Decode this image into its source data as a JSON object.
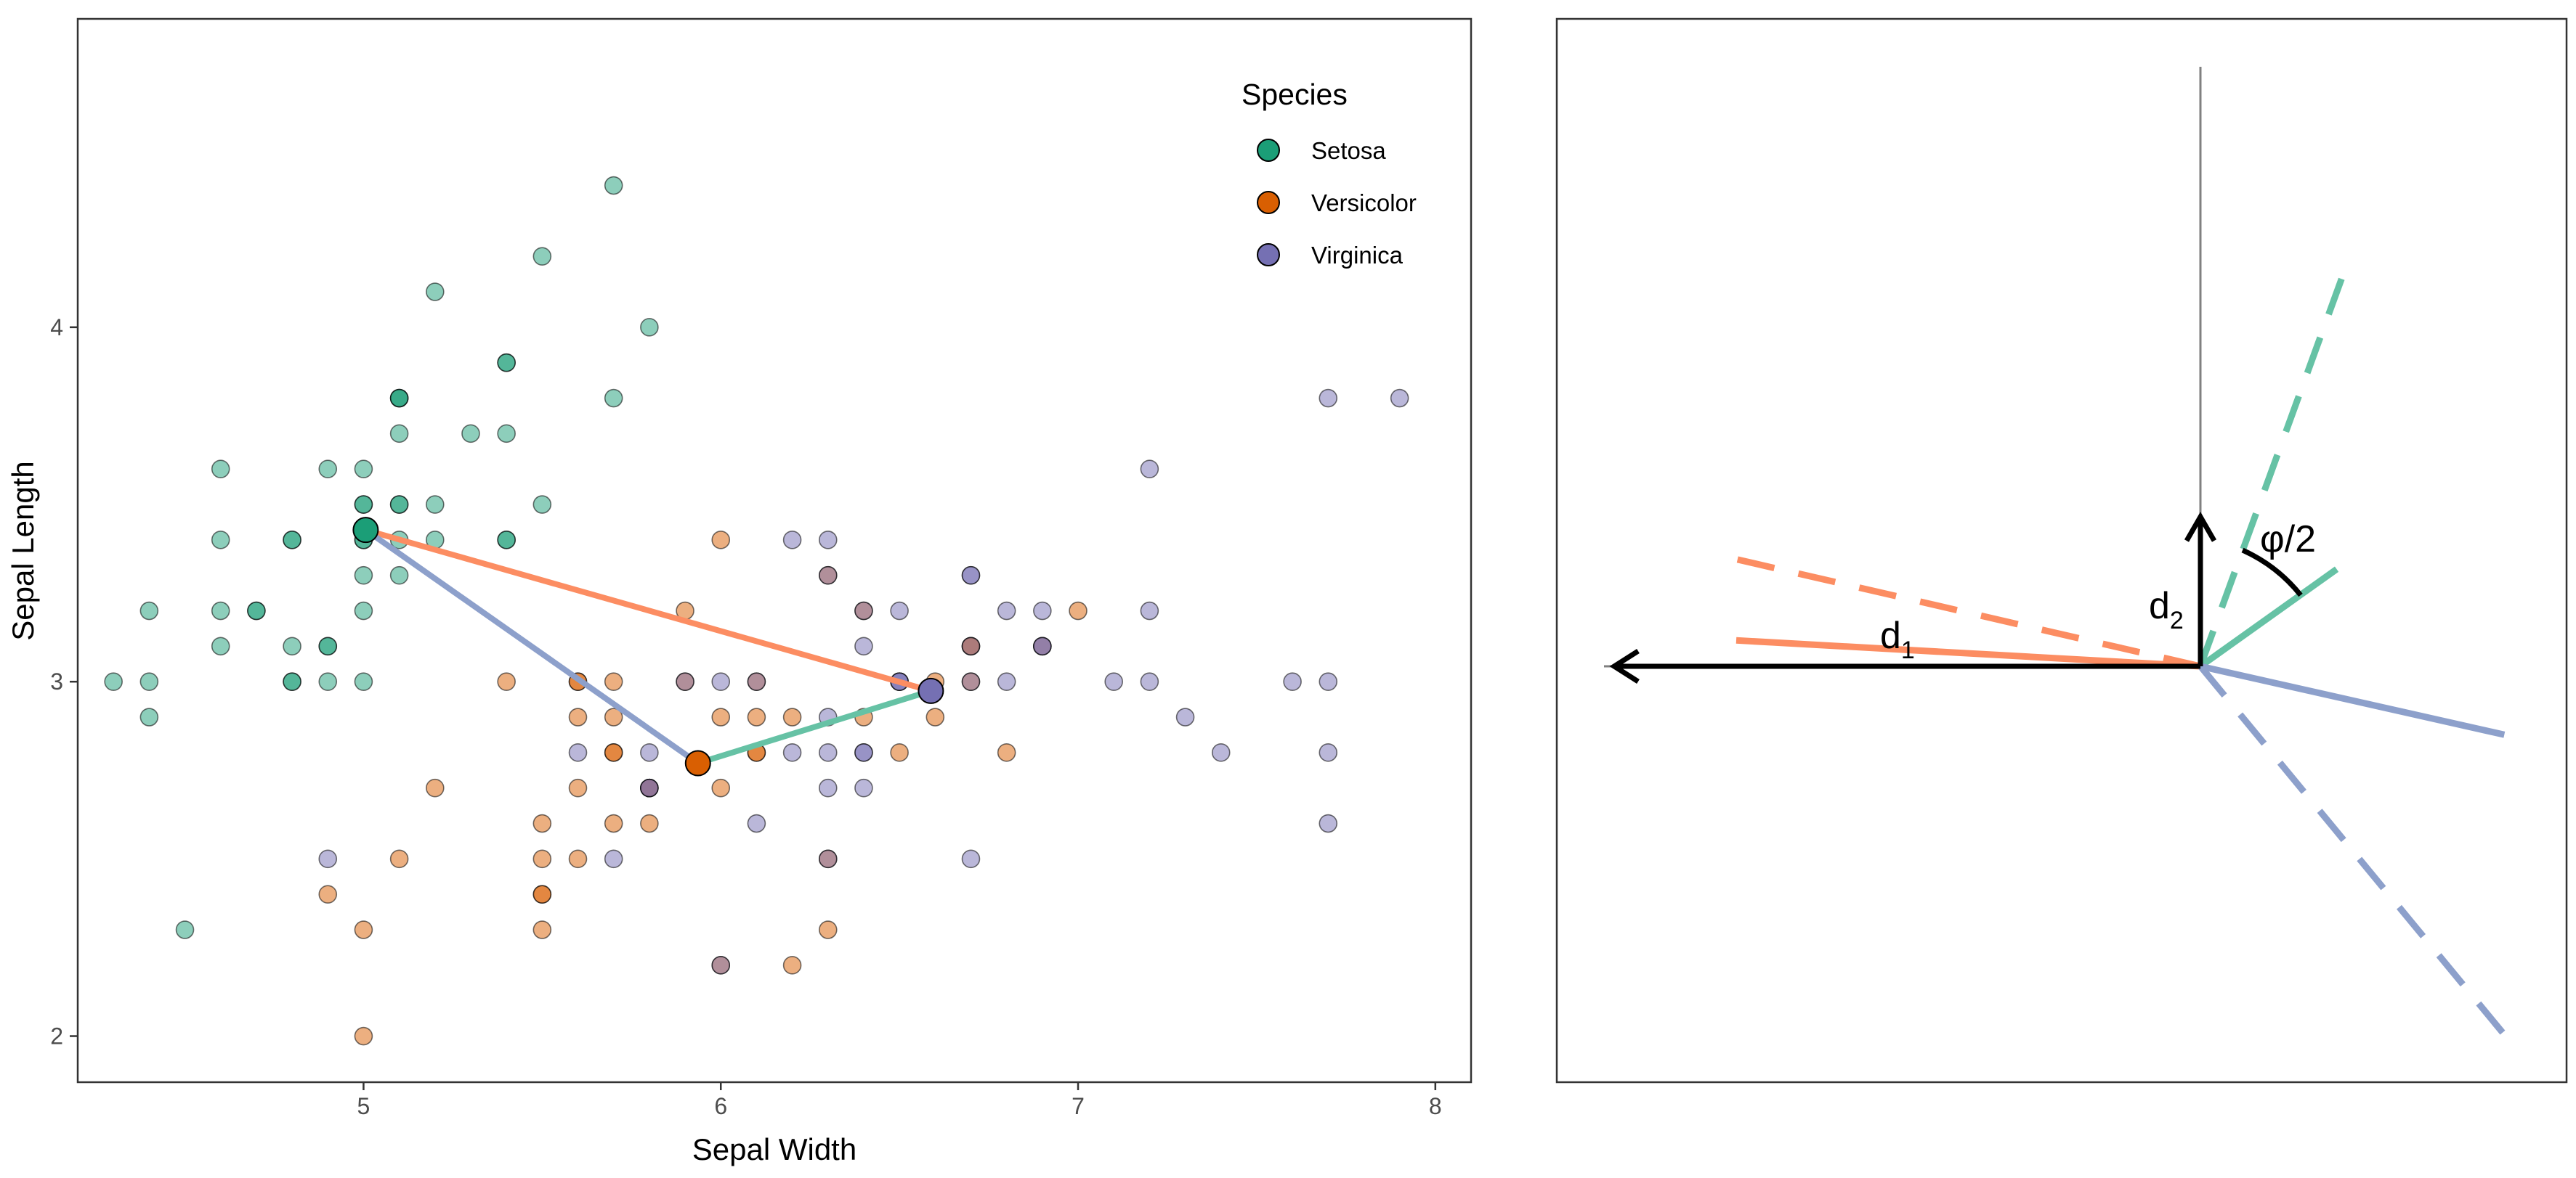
{
  "colors": {
    "setosa": "#1b9e77",
    "versicolor": "#d95f02",
    "virginica": "#7570b3",
    "line_orange": "#fc8d62",
    "line_green": "#66c2a5",
    "line_blue": "#8da0cb"
  },
  "chart_data": [
    {
      "type": "scatter",
      "title": "",
      "xlabel": "Sepal Width",
      "ylabel": "Sepal Length",
      "xlim": [
        4.2,
        8.1
      ],
      "ylim": [
        1.87,
        4.87
      ],
      "x_ticks": [
        "5",
        "6",
        "7",
        "8"
      ],
      "y_ticks": [
        "2",
        "3",
        "4"
      ],
      "grid": false,
      "legend": {
        "title": "Species",
        "position": "top-right",
        "entries": [
          "Setosa",
          "Versicolor",
          "Virginica"
        ]
      },
      "series": [
        {
          "name": "Setosa",
          "points": [
            [
              5.1,
              3.5
            ],
            [
              4.9,
              3.0
            ],
            [
              4.7,
              3.2
            ],
            [
              4.6,
              3.1
            ],
            [
              5.0,
              3.6
            ],
            [
              5.4,
              3.9
            ],
            [
              4.6,
              3.4
            ],
            [
              5.0,
              3.4
            ],
            [
              4.4,
              2.9
            ],
            [
              4.9,
              3.1
            ],
            [
              5.4,
              3.7
            ],
            [
              4.8,
              3.4
            ],
            [
              4.8,
              3.0
            ],
            [
              4.3,
              3.0
            ],
            [
              5.8,
              4.0
            ],
            [
              5.7,
              4.4
            ],
            [
              5.4,
              3.9
            ],
            [
              5.1,
              3.5
            ],
            [
              5.7,
              3.8
            ],
            [
              5.1,
              3.8
            ],
            [
              5.4,
              3.4
            ],
            [
              5.1,
              3.7
            ],
            [
              4.6,
              3.6
            ],
            [
              5.1,
              3.3
            ],
            [
              4.8,
              3.4
            ],
            [
              5.0,
              3.0
            ],
            [
              5.0,
              3.4
            ],
            [
              5.2,
              3.5
            ],
            [
              5.2,
              3.4
            ],
            [
              4.7,
              3.2
            ],
            [
              4.8,
              3.1
            ],
            [
              5.4,
              3.4
            ],
            [
              5.2,
              4.1
            ],
            [
              5.5,
              4.2
            ],
            [
              4.9,
              3.1
            ],
            [
              5.0,
              3.2
            ],
            [
              5.5,
              3.5
            ],
            [
              4.9,
              3.6
            ],
            [
              4.4,
              3.0
            ],
            [
              5.1,
              3.4
            ],
            [
              5.0,
              3.5
            ],
            [
              4.5,
              2.3
            ],
            [
              4.4,
              3.2
            ],
            [
              5.0,
              3.5
            ],
            [
              5.1,
              3.8
            ],
            [
              4.8,
              3.0
            ],
            [
              5.1,
              3.8
            ],
            [
              4.6,
              3.2
            ],
            [
              5.3,
              3.7
            ],
            [
              5.0,
              3.3
            ]
          ]
        },
        {
          "name": "Versicolor",
          "points": [
            [
              7.0,
              3.2
            ],
            [
              6.4,
              3.2
            ],
            [
              6.9,
              3.1
            ],
            [
              5.5,
              2.3
            ],
            [
              6.5,
              2.8
            ],
            [
              5.7,
              2.8
            ],
            [
              6.3,
              3.3
            ],
            [
              4.9,
              2.4
            ],
            [
              6.6,
              2.9
            ],
            [
              5.2,
              2.7
            ],
            [
              5.0,
              2.0
            ],
            [
              5.9,
              3.0
            ],
            [
              6.0,
              2.2
            ],
            [
              6.1,
              2.9
            ],
            [
              5.6,
              2.9
            ],
            [
              6.7,
              3.1
            ],
            [
              5.6,
              3.0
            ],
            [
              5.8,
              2.7
            ],
            [
              6.2,
              2.2
            ],
            [
              5.6,
              2.5
            ],
            [
              5.9,
              3.2
            ],
            [
              6.1,
              2.8
            ],
            [
              6.3,
              2.5
            ],
            [
              6.1,
              2.8
            ],
            [
              6.4,
              2.9
            ],
            [
              6.6,
              3.0
            ],
            [
              6.8,
              2.8
            ],
            [
              6.7,
              3.0
            ],
            [
              6.0,
              2.9
            ],
            [
              5.7,
              2.6
            ],
            [
              5.5,
              2.4
            ],
            [
              5.5,
              2.4
            ],
            [
              5.8,
              2.7
            ],
            [
              6.0,
              2.7
            ],
            [
              5.4,
              3.0
            ],
            [
              6.0,
              3.4
            ],
            [
              6.7,
              3.1
            ],
            [
              6.3,
              2.3
            ],
            [
              5.6,
              3.0
            ],
            [
              5.5,
              2.5
            ],
            [
              5.5,
              2.6
            ],
            [
              6.1,
              3.0
            ],
            [
              5.8,
              2.6
            ],
            [
              5.0,
              2.3
            ],
            [
              5.6,
              2.7
            ],
            [
              5.7,
              3.0
            ],
            [
              5.7,
              2.9
            ],
            [
              6.2,
              2.9
            ],
            [
              5.1,
              2.5
            ],
            [
              5.7,
              2.8
            ]
          ]
        },
        {
          "name": "Virginica",
          "points": [
            [
              6.3,
              3.3
            ],
            [
              5.8,
              2.7
            ],
            [
              7.1,
              3.0
            ],
            [
              6.3,
              2.9
            ],
            [
              6.5,
              3.0
            ],
            [
              7.6,
              3.0
            ],
            [
              4.9,
              2.5
            ],
            [
              7.3,
              2.9
            ],
            [
              6.7,
              2.5
            ],
            [
              7.2,
              3.6
            ],
            [
              6.5,
              3.2
            ],
            [
              6.4,
              2.7
            ],
            [
              6.8,
              3.0
            ],
            [
              5.7,
              2.5
            ],
            [
              5.8,
              2.8
            ],
            [
              6.4,
              3.2
            ],
            [
              6.5,
              3.0
            ],
            [
              7.7,
              3.8
            ],
            [
              7.7,
              2.6
            ],
            [
              6.0,
              2.2
            ],
            [
              6.9,
              3.2
            ],
            [
              5.6,
              2.8
            ],
            [
              7.7,
              2.8
            ],
            [
              6.3,
              2.7
            ],
            [
              6.7,
              3.3
            ],
            [
              7.2,
              3.2
            ],
            [
              6.2,
              2.8
            ],
            [
              6.1,
              3.0
            ],
            [
              6.4,
              2.8
            ],
            [
              7.2,
              3.0
            ],
            [
              7.4,
              2.8
            ],
            [
              7.9,
              3.8
            ],
            [
              6.4,
              2.8
            ],
            [
              6.3,
              2.8
            ],
            [
              6.1,
              2.6
            ],
            [
              7.7,
              3.0
            ],
            [
              6.3,
              3.4
            ],
            [
              6.4,
              3.1
            ],
            [
              6.0,
              3.0
            ],
            [
              6.9,
              3.1
            ],
            [
              6.7,
              3.1
            ],
            [
              6.9,
              3.1
            ],
            [
              5.8,
              2.7
            ],
            [
              6.8,
              3.2
            ],
            [
              6.7,
              3.3
            ],
            [
              6.7,
              3.0
            ],
            [
              6.3,
              2.5
            ],
            [
              6.5,
              3.0
            ],
            [
              6.2,
              3.4
            ],
            [
              5.9,
              3.0
            ]
          ]
        }
      ],
      "centroids": [
        {
          "name": "Setosa",
          "x": 5.006,
          "y": 3.428
        },
        {
          "name": "Versicolor",
          "x": 5.936,
          "y": 2.77
        },
        {
          "name": "Virginica",
          "x": 6.588,
          "y": 2.974
        }
      ],
      "connections": [
        {
          "from": "Setosa",
          "to": "Virginica",
          "color": "line_orange"
        },
        {
          "from": "Setosa",
          "to": "Versicolor",
          "color": "line_blue"
        },
        {
          "from": "Versicolor",
          "to": "Virginica",
          "color": "line_green"
        }
      ]
    },
    {
      "type": "diagram",
      "title": "",
      "labels": {
        "d1_main": "d",
        "d1_sub": "1",
        "d2_main": "d",
        "d2_sub": "2",
        "angle": "φ/2"
      },
      "segments": [
        {
          "name": "orange-solid",
          "angle_deg": 176.8,
          "length": 1.0,
          "color": "line_orange",
          "dashed": false
        },
        {
          "name": "orange-dashed",
          "angle_deg": 167.0,
          "length": 1.07,
          "color": "line_orange",
          "dashed": true
        },
        {
          "name": "green-solid",
          "angle_deg": 35.5,
          "length": 0.36,
          "color": "line_green",
          "dashed": false
        },
        {
          "name": "green-dashed",
          "angle_deg": 70.0,
          "length": 0.94,
          "color": "line_green",
          "dashed": true
        },
        {
          "name": "blue-solid",
          "angle_deg": -12.7,
          "length": 0.67,
          "color": "line_blue",
          "dashed": false
        },
        {
          "name": "blue-dashed",
          "angle_deg": -50.5,
          "length": 1.05,
          "color": "line_blue",
          "dashed": true
        }
      ]
    }
  ]
}
